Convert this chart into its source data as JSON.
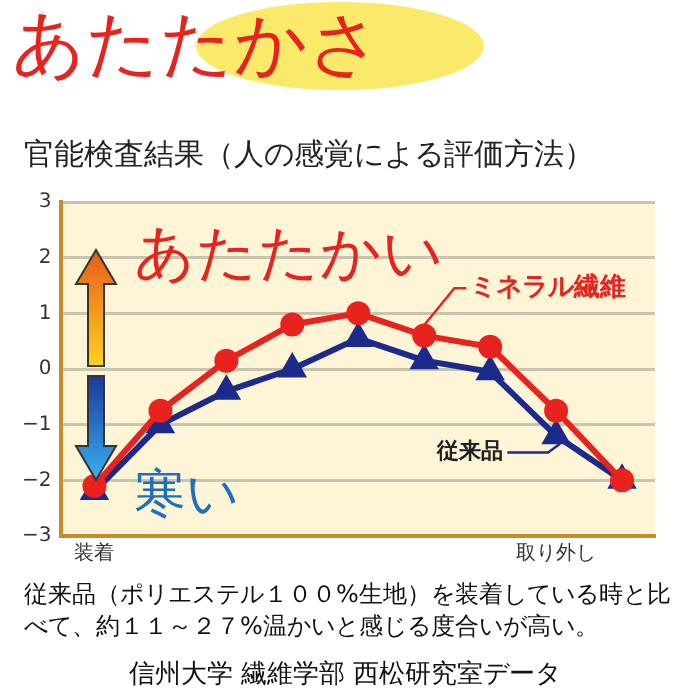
{
  "chart_data": {
    "type": "line",
    "title": "あたたかさ",
    "subtitle": "官能検査結果（人の感覚による評価方法）",
    "categories": [
      "装着",
      null,
      null,
      null,
      null,
      null,
      null,
      "取り外し",
      null
    ],
    "series": [
      {
        "name": "ミネラル繊維",
        "color": "#e8231e",
        "marker": "circle",
        "values": [
          -2.1,
          -0.75,
          0.15,
          0.8,
          1.0,
          0.6,
          0.4,
          -0.75,
          -2.0
        ]
      },
      {
        "name": "従来品",
        "color": "#1c2a8c",
        "marker": "triangle",
        "values": [
          -2.2,
          -1.0,
          -0.4,
          0.0,
          0.55,
          0.15,
          -0.05,
          -1.2,
          -2.0
        ]
      }
    ],
    "ylim": [
      -3,
      3
    ],
    "yticks": [
      -3,
      -2,
      -1,
      0,
      1,
      2,
      3
    ],
    "grid": "y",
    "legend": "right",
    "line_style": "solid",
    "annotations": [
      "あたたかい",
      "寒い",
      "従来品（ポリエステル１００%生地）を装着している時と比べて、約１１～２７%温かいと感じる度合いが高い。",
      "信州大学 繊維学部 西松研究室データ"
    ]
  }
}
